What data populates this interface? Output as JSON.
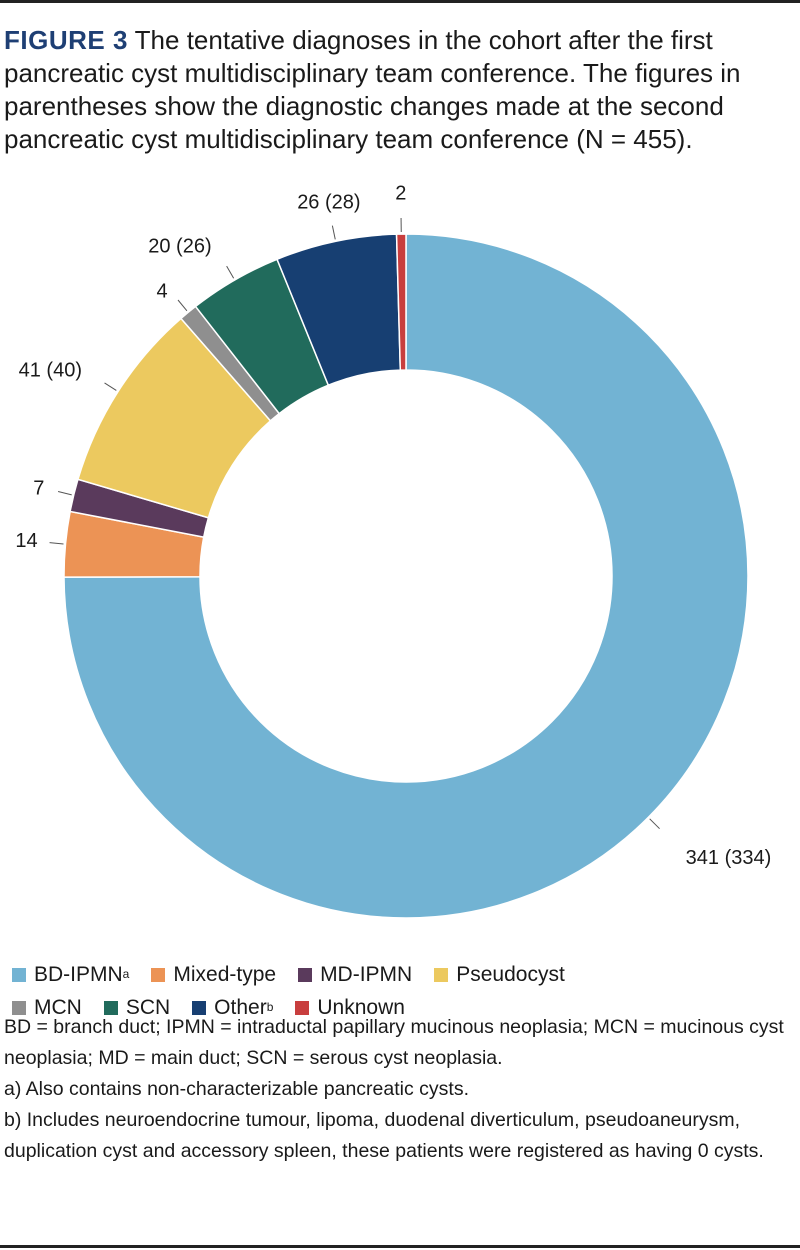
{
  "figure": {
    "label": "FIGURE 3",
    "caption": " The tentative diagnoses in the cohort after the first pancreatic cyst multidisciplinary team conference. The figures in parentheses show the diagnostic changes made at the second pancreatic cyst multidisciplinary team conference (N = 455)."
  },
  "chart_data": {
    "type": "pie",
    "donut": true,
    "start_angle_deg": 0,
    "direction": "clockwise",
    "slices": [
      {
        "name": "BD-IPMN",
        "sup": "a",
        "value": 341,
        "label": "341 (334)",
        "color": "#72b3d3"
      },
      {
        "name": "Mixed-type",
        "sup": "",
        "value": 14,
        "label": "14",
        "color": "#ec9355"
      },
      {
        "name": "MD-IPMN",
        "sup": "",
        "value": 7,
        "label": "7",
        "color": "#5a3a5c"
      },
      {
        "name": "Pseudocyst",
        "sup": "",
        "value": 41,
        "label": "41 (40)",
        "color": "#ecc95f"
      },
      {
        "name": "MCN",
        "sup": "",
        "value": 4,
        "label": "4",
        "color": "#8f8f8f"
      },
      {
        "name": "SCN",
        "sup": "",
        "value": 20,
        "label": "20 (26)",
        "color": "#216b5c"
      },
      {
        "name": "Other",
        "sup": "b",
        "value": 26,
        "label": "26 (28)",
        "color": "#173f72"
      },
      {
        "name": "Unknown",
        "sup": "",
        "value": 2,
        "label": "2",
        "color": "#c83e3e"
      }
    ]
  },
  "notes": [
    "BD = branch duct; IPMN = intraductal papillary mucinous neoplasia; MCN = mucinous cyst neoplasia; MD = main duct; SCN = serous cyst neoplasia.",
    "a) Also contains non-characterizable pancreatic cysts.",
    "b) Includes neuroendocrine tumour, lipoma, duodenal diverticulum, pseudoaneurysm, duplication cyst and accessory spleen, these patients were registered as having 0 cysts."
  ]
}
